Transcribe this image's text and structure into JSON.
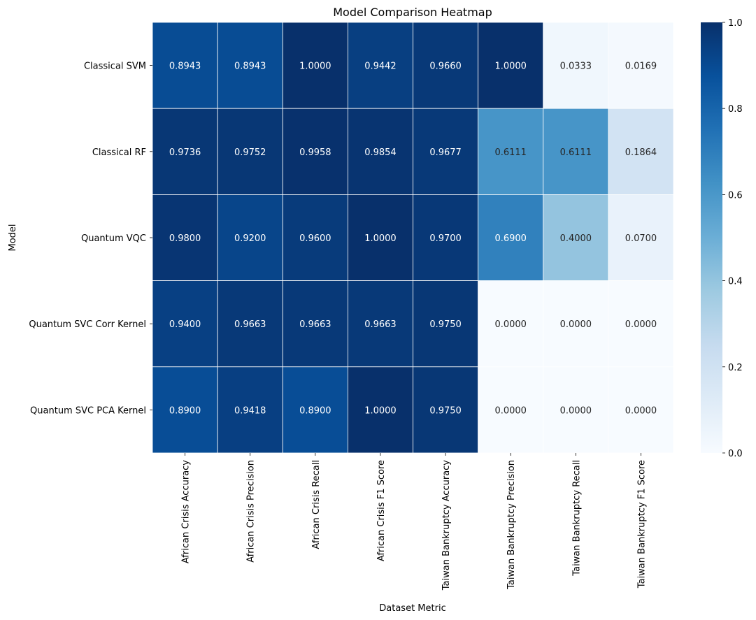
{
  "chart_data": {
    "type": "heatmap",
    "title": "Model Comparison Heatmap",
    "xlabel": "Dataset Metric",
    "ylabel": "Model",
    "rows": [
      "Classical SVM",
      "Classical RF",
      "Quantum VQC",
      "Quantum SVC Corr Kernel",
      "Quantum SVC PCA Kernel"
    ],
    "columns": [
      "African Crisis Accuracy",
      "African Crisis Precision",
      "African Crisis Recall",
      "African Crisis F1 Score",
      "Taiwan Bankruptcy Accuracy",
      "Taiwan Bankruptcy Precision",
      "Taiwan Bankruptcy Recall",
      "Taiwan Bankruptcy F1 Score"
    ],
    "values": [
      [
        0.8943,
        0.8943,
        1.0,
        0.9442,
        0.966,
        1.0,
        0.0333,
        0.0169
      ],
      [
        0.9736,
        0.9752,
        0.9958,
        0.9854,
        0.9677,
        0.6111,
        0.6111,
        0.1864
      ],
      [
        0.98,
        0.92,
        0.96,
        1.0,
        0.97,
        0.69,
        0.4,
        0.07
      ],
      [
        0.94,
        0.9663,
        0.9663,
        0.9663,
        0.975,
        0.0,
        0.0,
        0.0
      ],
      [
        0.89,
        0.9418,
        0.89,
        1.0,
        0.975,
        0.0,
        0.0,
        0.0
      ]
    ],
    "value_labels": [
      [
        "0.8943",
        "0.8943",
        "1.0000",
        "0.9442",
        "0.9660",
        "1.0000",
        "0.0333",
        "0.0169"
      ],
      [
        "0.9736",
        "0.9752",
        "0.9958",
        "0.9854",
        "0.9677",
        "0.6111",
        "0.6111",
        "0.1864"
      ],
      [
        "0.9800",
        "0.9200",
        "0.9600",
        "1.0000",
        "0.9700",
        "0.6900",
        "0.4000",
        "0.0700"
      ],
      [
        "0.9400",
        "0.9663",
        "0.9663",
        "0.9663",
        "0.9750",
        "0.0000",
        "0.0000",
        "0.0000"
      ],
      [
        "0.8900",
        "0.9418",
        "0.8900",
        "1.0000",
        "0.9750",
        "0.0000",
        "0.0000",
        "0.0000"
      ]
    ],
    "colormap": "Blues",
    "vmin": 0.0,
    "vmax": 1.0,
    "colorbar_ticks": [
      "0.0",
      "0.2",
      "0.4",
      "0.6",
      "0.8",
      "1.0"
    ],
    "colorbar_tick_values": [
      0.0,
      0.2,
      0.4,
      0.6,
      0.8,
      1.0
    ],
    "annotation_light_color": "#ffffff",
    "annotation_dark_color": "#262626",
    "cell_border_color": "#ffffff"
  }
}
